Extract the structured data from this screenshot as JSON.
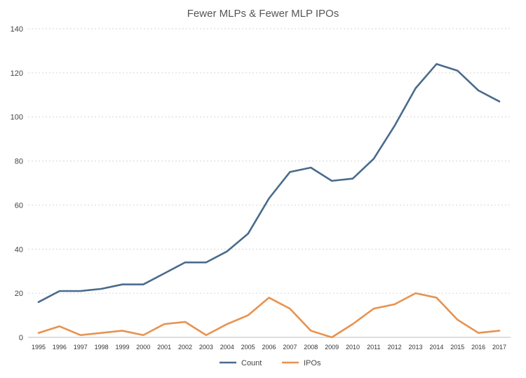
{
  "chart_data": {
    "type": "line",
    "title": "Fewer MLPs & Fewer MLP IPOs",
    "xlabel": "",
    "ylabel": "",
    "ylim": [
      0,
      140
    ],
    "yticks": [
      "0",
      "20",
      "40",
      "60",
      "80",
      "100",
      "120",
      "140"
    ],
    "grid": true,
    "legend_position": "bottom-center",
    "categories": [
      "1995",
      "1996",
      "1997",
      "1998",
      "1999",
      "2000",
      "2001",
      "2002",
      "2003",
      "2004",
      "2005",
      "2006",
      "2007",
      "2008",
      "2009",
      "2010",
      "2011",
      "2012",
      "2013",
      "2014",
      "2015",
      "2016",
      "2017"
    ],
    "series": [
      {
        "name": "Count",
        "color": "#4a6b8c",
        "values": [
          16,
          21,
          21,
          22,
          24,
          24,
          29,
          34,
          34,
          39,
          47,
          63,
          75,
          77,
          71,
          72,
          81,
          96,
          113,
          124,
          121,
          112,
          107
        ]
      },
      {
        "name": "IPOs",
        "color": "#e8924f",
        "values": [
          2,
          5,
          1,
          2,
          3,
          1,
          6,
          7,
          1,
          6,
          10,
          18,
          13,
          3,
          0,
          6,
          13,
          15,
          20,
          18,
          8,
          2,
          3
        ]
      }
    ]
  }
}
